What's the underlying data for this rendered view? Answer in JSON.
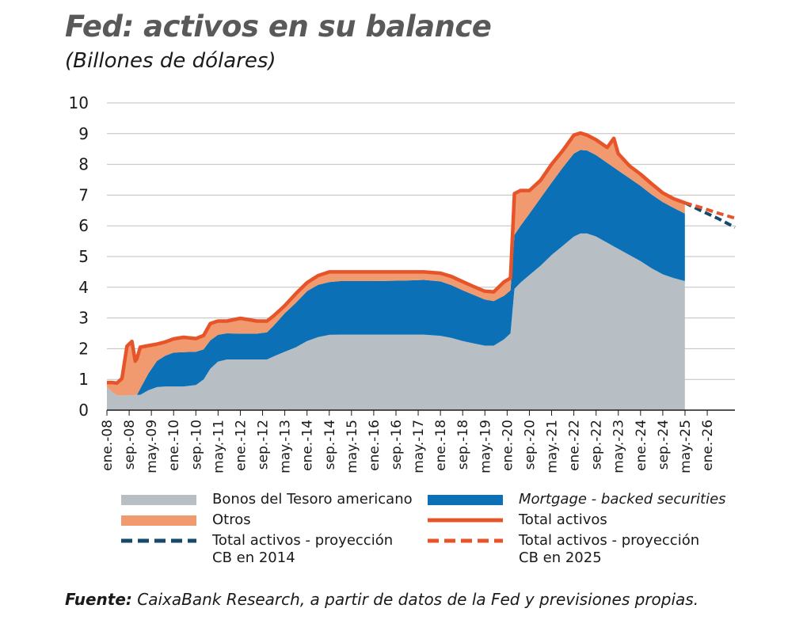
{
  "header": {
    "title": "Fed: activos en su balance",
    "subtitle": "(Billones de dólares)"
  },
  "colors": {
    "treasury": "#b7bec4",
    "mbs": "#0b70b6",
    "otros": "#f29a6f",
    "total": "#e8542a",
    "proj2014": "#154a6e",
    "proj2025": "#e8542a",
    "grid": "#bfbfbf",
    "axis": "#1a1a1a"
  },
  "chart_data": {
    "type": "area",
    "yticks": [
      0,
      1,
      2,
      3,
      4,
      5,
      6,
      7,
      8,
      9,
      10
    ],
    "ylim": [
      0,
      10
    ],
    "xlim": [
      2008.0,
      2026.83
    ],
    "xticks": [
      {
        "label": "ene.-08",
        "t": 2008.0
      },
      {
        "label": "sep.-08",
        "t": 2008.667
      },
      {
        "label": "may.-09",
        "t": 2009.333
      },
      {
        "label": "ene.-10",
        "t": 2010.0
      },
      {
        "label": "sep.-10",
        "t": 2010.667
      },
      {
        "label": "may.-11",
        "t": 2011.333
      },
      {
        "label": "ene.-12",
        "t": 2012.0
      },
      {
        "label": "sep.-12",
        "t": 2012.667
      },
      {
        "label": "may.-13",
        "t": 2013.333
      },
      {
        "label": "ene.-14",
        "t": 2014.0
      },
      {
        "label": "sep.-14",
        "t": 2014.667
      },
      {
        "label": "may.-15",
        "t": 2015.333
      },
      {
        "label": "ene.-16",
        "t": 2016.0
      },
      {
        "label": "sep.-16",
        "t": 2016.667
      },
      {
        "label": "may.-17",
        "t": 2017.333
      },
      {
        "label": "ene.-18",
        "t": 2018.0
      },
      {
        "label": "sep.-18",
        "t": 2018.667
      },
      {
        "label": "may.-19",
        "t": 2019.333
      },
      {
        "label": "ene.-20",
        "t": 2020.0
      },
      {
        "label": "sep.-20",
        "t": 2020.667
      },
      {
        "label": "may.-21",
        "t": 2021.333
      },
      {
        "label": "ene.-22",
        "t": 2022.0
      },
      {
        "label": "sep.-22",
        "t": 2022.667
      },
      {
        "label": "may.-23",
        "t": 2023.333
      },
      {
        "label": "ene.-24",
        "t": 2024.0
      },
      {
        "label": "sep.-24",
        "t": 2024.667
      },
      {
        "label": "may.-25",
        "t": 2025.333
      },
      {
        "label": "ene.-26",
        "t": 2026.0
      }
    ],
    "series": [
      {
        "name": "Bonos del Tesoro americano",
        "kind": "stack",
        "points": [
          [
            2008.0,
            0.75
          ],
          [
            2008.15,
            0.6
          ],
          [
            2008.3,
            0.48
          ],
          [
            2008.6,
            0.48
          ],
          [
            2009.0,
            0.5
          ],
          [
            2009.25,
            0.65
          ],
          [
            2009.5,
            0.75
          ],
          [
            2009.75,
            0.77
          ],
          [
            2010.0,
            0.77
          ],
          [
            2010.3,
            0.77
          ],
          [
            2010.67,
            0.82
          ],
          [
            2010.9,
            1.0
          ],
          [
            2011.1,
            1.35
          ],
          [
            2011.33,
            1.58
          ],
          [
            2011.6,
            1.65
          ],
          [
            2012.0,
            1.65
          ],
          [
            2012.5,
            1.65
          ],
          [
            2012.8,
            1.65
          ],
          [
            2013.0,
            1.75
          ],
          [
            2013.33,
            1.9
          ],
          [
            2013.67,
            2.05
          ],
          [
            2014.0,
            2.25
          ],
          [
            2014.33,
            2.38
          ],
          [
            2014.67,
            2.45
          ],
          [
            2015.0,
            2.46
          ],
          [
            2016.0,
            2.46
          ],
          [
            2017.0,
            2.46
          ],
          [
            2017.5,
            2.46
          ],
          [
            2018.0,
            2.42
          ],
          [
            2018.33,
            2.35
          ],
          [
            2018.67,
            2.25
          ],
          [
            2019.0,
            2.17
          ],
          [
            2019.33,
            2.1
          ],
          [
            2019.6,
            2.1
          ],
          [
            2019.9,
            2.3
          ],
          [
            2020.1,
            2.5
          ],
          [
            2020.22,
            3.95
          ],
          [
            2020.4,
            4.15
          ],
          [
            2020.67,
            4.4
          ],
          [
            2021.0,
            4.7
          ],
          [
            2021.33,
            5.05
          ],
          [
            2021.67,
            5.35
          ],
          [
            2022.0,
            5.65
          ],
          [
            2022.2,
            5.75
          ],
          [
            2022.4,
            5.75
          ],
          [
            2022.67,
            5.65
          ],
          [
            2023.0,
            5.45
          ],
          [
            2023.33,
            5.25
          ],
          [
            2023.67,
            5.05
          ],
          [
            2024.0,
            4.85
          ],
          [
            2024.33,
            4.62
          ],
          [
            2024.67,
            4.42
          ],
          [
            2025.0,
            4.3
          ],
          [
            2025.33,
            4.2
          ]
        ]
      },
      {
        "name": "Mortgage - backed securities",
        "kind": "stack",
        "points": [
          [
            2008.0,
            0.0
          ],
          [
            2008.9,
            0.0
          ],
          [
            2009.0,
            0.2
          ],
          [
            2009.25,
            0.55
          ],
          [
            2009.5,
            0.85
          ],
          [
            2009.75,
            1.0
          ],
          [
            2010.0,
            1.1
          ],
          [
            2010.3,
            1.12
          ],
          [
            2010.67,
            1.08
          ],
          [
            2010.9,
            0.98
          ],
          [
            2011.1,
            0.92
          ],
          [
            2011.33,
            0.87
          ],
          [
            2011.6,
            0.85
          ],
          [
            2012.0,
            0.84
          ],
          [
            2012.5,
            0.84
          ],
          [
            2012.8,
            0.88
          ],
          [
            2013.0,
            1.0
          ],
          [
            2013.33,
            1.25
          ],
          [
            2013.67,
            1.45
          ],
          [
            2014.0,
            1.62
          ],
          [
            2014.33,
            1.7
          ],
          [
            2014.67,
            1.72
          ],
          [
            2015.0,
            1.74
          ],
          [
            2016.0,
            1.74
          ],
          [
            2017.0,
            1.76
          ],
          [
            2017.5,
            1.78
          ],
          [
            2018.0,
            1.77
          ],
          [
            2018.33,
            1.72
          ],
          [
            2018.67,
            1.65
          ],
          [
            2019.0,
            1.58
          ],
          [
            2019.33,
            1.5
          ],
          [
            2019.6,
            1.45
          ],
          [
            2019.9,
            1.42
          ],
          [
            2020.1,
            1.4
          ],
          [
            2020.22,
            1.75
          ],
          [
            2020.4,
            1.85
          ],
          [
            2020.67,
            2.0
          ],
          [
            2021.0,
            2.2
          ],
          [
            2021.33,
            2.35
          ],
          [
            2021.67,
            2.55
          ],
          [
            2022.0,
            2.7
          ],
          [
            2022.2,
            2.72
          ],
          [
            2022.4,
            2.7
          ],
          [
            2022.67,
            2.65
          ],
          [
            2023.0,
            2.6
          ],
          [
            2023.33,
            2.55
          ],
          [
            2023.67,
            2.5
          ],
          [
            2024.0,
            2.45
          ],
          [
            2024.33,
            2.4
          ],
          [
            2024.67,
            2.35
          ],
          [
            2025.0,
            2.28
          ],
          [
            2025.33,
            2.2
          ]
        ]
      },
      {
        "name": "Otros",
        "kind": "stack",
        "points": [
          [
            2008.0,
            0.15
          ],
          [
            2008.15,
            0.3
          ],
          [
            2008.3,
            0.4
          ],
          [
            2008.45,
            0.55
          ],
          [
            2008.6,
            1.6
          ],
          [
            2008.75,
            1.75
          ],
          [
            2008.85,
            1.1
          ],
          [
            2009.0,
            1.35
          ],
          [
            2009.25,
            0.9
          ],
          [
            2009.5,
            0.55
          ],
          [
            2009.75,
            0.45
          ],
          [
            2010.0,
            0.45
          ],
          [
            2010.3,
            0.48
          ],
          [
            2010.67,
            0.43
          ],
          [
            2010.9,
            0.45
          ],
          [
            2011.1,
            0.55
          ],
          [
            2011.33,
            0.45
          ],
          [
            2011.6,
            0.4
          ],
          [
            2012.0,
            0.5
          ],
          [
            2012.5,
            0.41
          ],
          [
            2012.8,
            0.37
          ],
          [
            2013.0,
            0.32
          ],
          [
            2013.33,
            0.25
          ],
          [
            2013.67,
            0.3
          ],
          [
            2014.0,
            0.28
          ],
          [
            2014.33,
            0.3
          ],
          [
            2014.67,
            0.33
          ],
          [
            2015.0,
            0.3
          ],
          [
            2016.0,
            0.3
          ],
          [
            2017.0,
            0.28
          ],
          [
            2017.5,
            0.26
          ],
          [
            2018.0,
            0.27
          ],
          [
            2018.33,
            0.28
          ],
          [
            2018.67,
            0.28
          ],
          [
            2019.0,
            0.27
          ],
          [
            2019.33,
            0.27
          ],
          [
            2019.6,
            0.3
          ],
          [
            2019.9,
            0.45
          ],
          [
            2020.1,
            0.4
          ],
          [
            2020.22,
            1.35
          ],
          [
            2020.4,
            1.15
          ],
          [
            2020.67,
            0.75
          ],
          [
            2021.0,
            0.58
          ],
          [
            2021.33,
            0.6
          ],
          [
            2021.67,
            0.55
          ],
          [
            2022.0,
            0.6
          ],
          [
            2022.2,
            0.55
          ],
          [
            2022.4,
            0.5
          ],
          [
            2022.67,
            0.5
          ],
          [
            2023.0,
            0.5
          ],
          [
            2023.2,
            0.95
          ],
          [
            2023.33,
            0.55
          ],
          [
            2023.67,
            0.4
          ],
          [
            2024.0,
            0.38
          ],
          [
            2024.33,
            0.35
          ],
          [
            2024.67,
            0.3
          ],
          [
            2025.0,
            0.3
          ],
          [
            2025.33,
            0.35
          ]
        ]
      },
      {
        "name": "Total activos",
        "kind": "total"
      },
      {
        "name": "Total activos - proyección CB en 2014",
        "kind": "dashed",
        "points": [
          [
            2025.33,
            6.75
          ],
          [
            2025.8,
            6.5
          ],
          [
            2026.3,
            6.25
          ],
          [
            2026.83,
            5.95
          ]
        ]
      },
      {
        "name": "Total activos - proyección CB en 2025",
        "kind": "dashed",
        "points": [
          [
            2025.33,
            6.75
          ],
          [
            2025.8,
            6.6
          ],
          [
            2026.3,
            6.42
          ],
          [
            2026.83,
            6.25
          ]
        ]
      }
    ]
  },
  "legend": {
    "treasury": "Bonos del Tesoro americano",
    "mbs": "Mortgage - backed securities",
    "otros": "Otros",
    "total": "Total activos",
    "proj2014_line1": "Total activos - proyección",
    "proj2014_line2": "CB en 2014",
    "proj2025_line1": "Total activos - proyección",
    "proj2025_line2": "CB en 2025"
  },
  "source": {
    "label": "Fuente:",
    "text": " CaixaBank Research, a partir de datos de la Fed y previsiones propias."
  }
}
